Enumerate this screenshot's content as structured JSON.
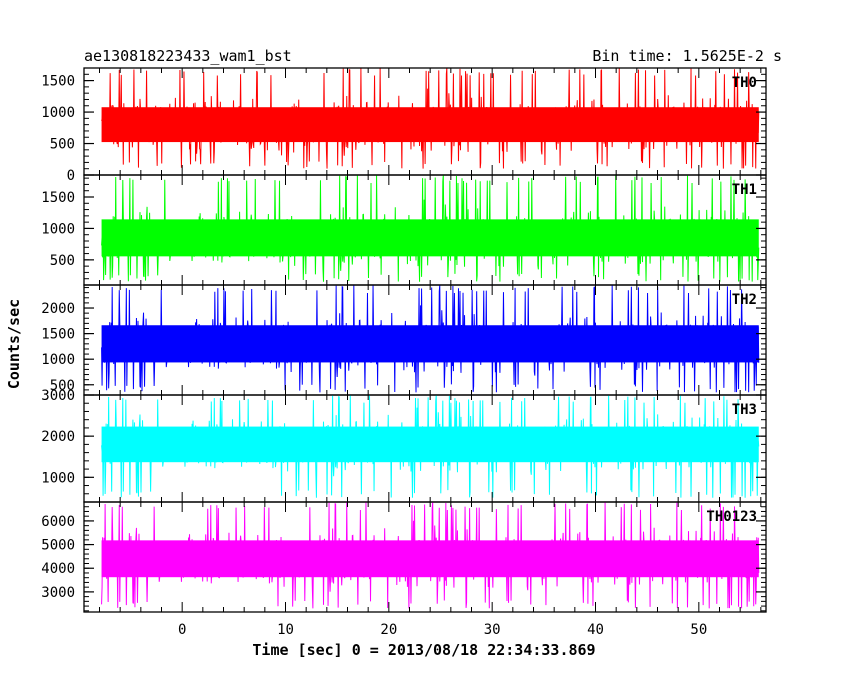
{
  "header": {
    "left_title": "ae130818223433_wam1_bst",
    "right_title": "Bin time: 1.5625E-2 s"
  },
  "chart_data": {
    "type": "line",
    "title": "ae130818223433_wam1_bst",
    "subtitle": "Bin time: 1.5625E-2 s",
    "xlabel": "Time [sec] 0 = 2013/08/18 22:34:33.869",
    "ylabel": "Counts/sec",
    "xlim": [
      -9.5,
      56.5
    ],
    "x_range_data": [
      -7.8,
      55.8
    ],
    "x_ticks": [
      0,
      10,
      20,
      30,
      40,
      50
    ],
    "x_tick_labels": [
      "0",
      "10",
      "20",
      "30",
      "40",
      "50"
    ],
    "bin_time_s": 0.015625,
    "grid": false,
    "panels": [
      {
        "name": "TH0",
        "color": "#ff0000",
        "ylim": [
          0,
          1700
        ],
        "y_ticks": [
          0,
          500,
          1000,
          1500
        ],
        "y_tick_labels": [
          "0",
          "500",
          "1000",
          "1500"
        ],
        "mean": 800,
        "lower_envelope": 100,
        "upper_envelope": 1700
      },
      {
        "name": "TH1",
        "color": "#00ff00",
        "ylim": [
          100,
          1850
        ],
        "y_ticks": [
          500,
          1000,
          1500
        ],
        "y_tick_labels": [
          "500",
          "1000",
          "1500"
        ],
        "mean": 850,
        "lower_envelope": 150,
        "upper_envelope": 1850
      },
      {
        "name": "TH2",
        "color": "#0000ff",
        "ylim": [
          300,
          2450
        ],
        "y_ticks": [
          500,
          1000,
          1500,
          2000
        ],
        "y_tick_labels": [
          "500",
          "1000",
          "1500",
          "2000"
        ],
        "mean": 1300,
        "lower_envelope": 350,
        "upper_envelope": 2450
      },
      {
        "name": "TH3",
        "color": "#00ffff",
        "ylim": [
          400,
          3000
        ],
        "y_ticks": [
          1000,
          2000,
          3000
        ],
        "y_tick_labels": [
          "1000",
          "2000",
          "3000"
        ],
        "mean": 1800,
        "lower_envelope": 500,
        "upper_envelope": 3000
      },
      {
        "name": "TH0123",
        "color": "#ff00ff",
        "ylim": [
          2150,
          6800
        ],
        "y_ticks": [
          3000,
          4000,
          5000,
          6000
        ],
        "y_tick_labels": [
          "3000",
          "4000",
          "5000",
          "6000"
        ],
        "mean": 4400,
        "lower_envelope": 2300,
        "upper_envelope": 6800
      }
    ]
  }
}
